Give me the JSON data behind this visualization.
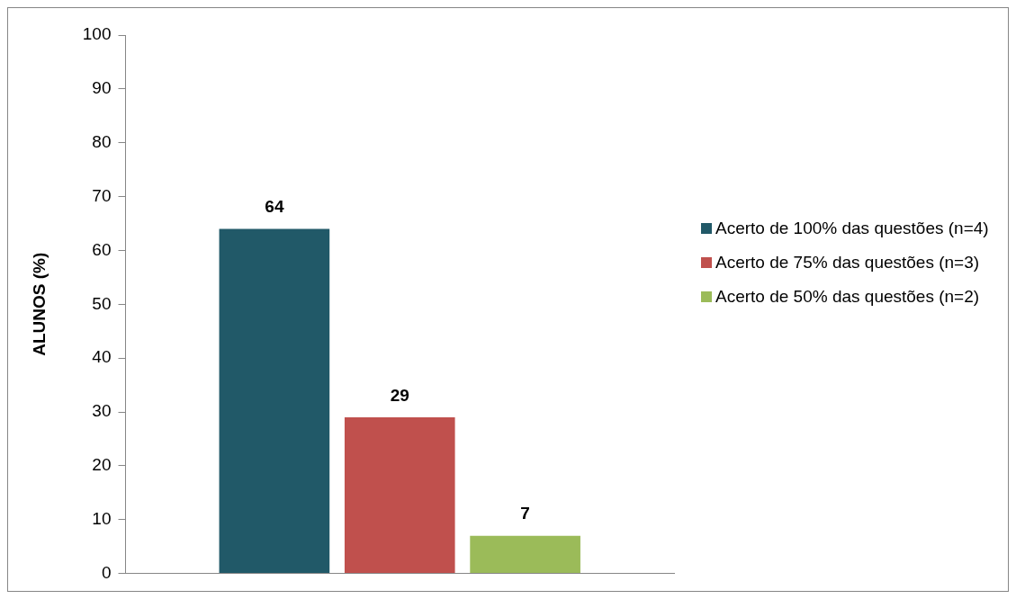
{
  "chart_data": {
    "type": "bar",
    "ylabel": "ALUNOS (%)",
    "categories": [
      null
    ],
    "series": [
      {
        "name": "Acerto de 100% das questões (n=4)",
        "color": "#215968",
        "values": [
          64
        ]
      },
      {
        "name": "Acerto de 75% das questões (n=3)",
        "color": "#c0504d",
        "values": [
          29
        ]
      },
      {
        "name": "Acerto de 50% das questões (n=2)",
        "color": "#9bbb59",
        "values": [
          7
        ]
      }
    ],
    "ylim": [
      0,
      100
    ],
    "yticks": [
      0,
      10,
      20,
      30,
      40,
      50,
      60,
      70,
      80,
      90,
      100
    ],
    "grid": false,
    "legend": "right",
    "data_labels": true
  }
}
